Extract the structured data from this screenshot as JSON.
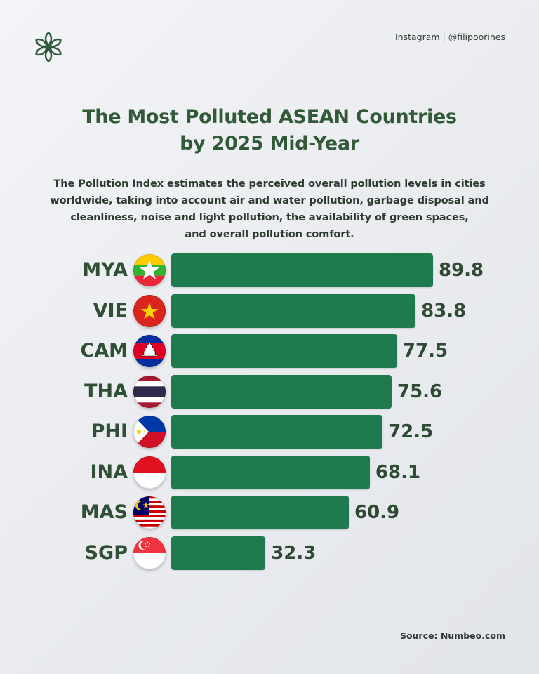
{
  "header": {
    "handle": "Instagram | @filipoorines",
    "logo_icon": "floral-lotus-icon"
  },
  "title_lines": [
    "The Most Polluted ASEAN Countries",
    "by 2025 Mid-Year"
  ],
  "subtitle_lines": [
    "The Pollution Index estimates the perceived overall pollution levels in cities",
    "worldwide, taking into account air and water pollution, garbage disposal and",
    "cleanliness, noise and light pollution, the availability of green spaces,",
    "and overall pollution comfort."
  ],
  "footer": {
    "source": "Source: Numbeo.com"
  },
  "colors": {
    "bar": "#1f7a4e",
    "title": "#335a38",
    "text": "#2f4a33"
  },
  "chart_data": {
    "type": "bar",
    "orientation": "horizontal",
    "title": "The Most Polluted ASEAN Countries by 2025 Mid-Year",
    "xlabel": "",
    "ylabel": "",
    "xlim": [
      0,
      100
    ],
    "grid": false,
    "legend": "none",
    "categories": [
      "MYA",
      "VIE",
      "CAM",
      "THA",
      "PHI",
      "INA",
      "MAS",
      "SGP"
    ],
    "values": [
      89.8,
      83.8,
      77.5,
      75.6,
      72.5,
      68.1,
      60.9,
      32.3
    ],
    "value_labels": [
      "89.8",
      "83.8",
      "77.5",
      "75.6",
      "72.5",
      "68.1",
      "60.9",
      "32.3"
    ],
    "flags": [
      "myanmar-flag-icon",
      "vietnam-flag-icon",
      "cambodia-flag-icon",
      "thailand-flag-icon",
      "philippines-flag-icon",
      "indonesia-flag-icon",
      "malaysia-flag-icon",
      "singapore-flag-icon"
    ]
  }
}
